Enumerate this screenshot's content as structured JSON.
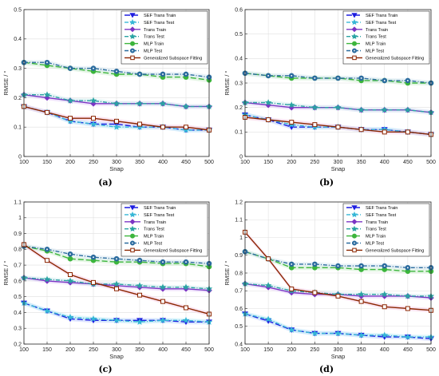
{
  "chart_data": [
    {
      "type": "line",
      "panel_label": "(a)",
      "xlabel": "Snap",
      "ylabel": "RMSE / °",
      "x": [
        100,
        150,
        200,
        250,
        300,
        350,
        400,
        450,
        500
      ],
      "xlim": [
        100,
        500
      ],
      "ylim": [
        0,
        0.5
      ],
      "xticks": [
        "100",
        "150",
        "200",
        "250",
        "300",
        "350",
        "400",
        "450",
        "500"
      ],
      "yticks": [
        "0",
        "0.1",
        "0.2",
        "0.3",
        "0.4",
        "0.5"
      ],
      "grid": true,
      "legend": "top-right",
      "series": [
        {
          "name": "SEF Trans Train",
          "values": [
            0.17,
            0.15,
            0.12,
            0.11,
            0.11,
            0.1,
            0.1,
            0.09,
            0.09
          ]
        },
        {
          "name": "SEF Trans Test",
          "values": [
            0.17,
            0.15,
            0.12,
            0.11,
            0.1,
            0.1,
            0.1,
            0.09,
            0.09
          ]
        },
        {
          "name": "Trans Train",
          "values": [
            0.21,
            0.2,
            0.19,
            0.18,
            0.18,
            0.18,
            0.18,
            0.17,
            0.17
          ]
        },
        {
          "name": "Trans Test",
          "values": [
            0.21,
            0.21,
            0.19,
            0.19,
            0.18,
            0.18,
            0.18,
            0.17,
            0.17
          ]
        },
        {
          "name": "MLP Train",
          "values": [
            0.32,
            0.31,
            0.3,
            0.29,
            0.28,
            0.28,
            0.27,
            0.27,
            0.26
          ]
        },
        {
          "name": "MLP Test",
          "values": [
            0.32,
            0.32,
            0.3,
            0.3,
            0.29,
            0.28,
            0.28,
            0.28,
            0.27
          ]
        },
        {
          "name": "Generalized Subspace Fitting",
          "values": [
            0.17,
            0.15,
            0.13,
            0.13,
            0.12,
            0.11,
            0.1,
            0.1,
            0.09
          ]
        }
      ]
    },
    {
      "type": "line",
      "panel_label": "(b)",
      "xlabel": "Snap",
      "ylabel": "RMSE / °",
      "x": [
        100,
        150,
        200,
        250,
        300,
        350,
        400,
        450,
        500
      ],
      "xlim": [
        100,
        500
      ],
      "ylim": [
        0,
        0.6
      ],
      "xticks": [
        "100",
        "150",
        "200",
        "250",
        "300",
        "350",
        "400",
        "450",
        "500"
      ],
      "yticks": [
        "0",
        "0.1",
        "0.2",
        "0.3",
        "0.4",
        "0.5",
        "0.6"
      ],
      "grid": true,
      "legend": "top-right",
      "series": [
        {
          "name": "SEF Trans Train",
          "values": [
            0.17,
            0.15,
            0.12,
            0.12,
            0.12,
            0.11,
            0.11,
            0.1,
            0.09
          ]
        },
        {
          "name": "SEF Trans Test",
          "values": [
            0.17,
            0.15,
            0.13,
            0.12,
            0.12,
            0.11,
            0.11,
            0.1,
            0.09
          ]
        },
        {
          "name": "Trans Train",
          "values": [
            0.22,
            0.21,
            0.2,
            0.2,
            0.2,
            0.19,
            0.19,
            0.19,
            0.18
          ]
        },
        {
          "name": "Trans Test",
          "values": [
            0.22,
            0.22,
            0.21,
            0.2,
            0.2,
            0.19,
            0.19,
            0.19,
            0.18
          ]
        },
        {
          "name": "MLP Train",
          "values": [
            0.34,
            0.33,
            0.32,
            0.32,
            0.32,
            0.31,
            0.31,
            0.3,
            0.3
          ]
        },
        {
          "name": "MLP Test",
          "values": [
            0.34,
            0.33,
            0.33,
            0.32,
            0.32,
            0.32,
            0.31,
            0.31,
            0.3
          ]
        },
        {
          "name": "Generalized Subspace Fitting",
          "values": [
            0.16,
            0.15,
            0.14,
            0.13,
            0.12,
            0.11,
            0.1,
            0.1,
            0.09
          ]
        }
      ]
    },
    {
      "type": "line",
      "panel_label": "(c)",
      "xlabel": "Snap",
      "ylabel": "RMSE / °",
      "x": [
        100,
        150,
        200,
        250,
        300,
        350,
        400,
        450,
        500
      ],
      "xlim": [
        100,
        500
      ],
      "ylim": [
        0.2,
        1.1
      ],
      "xticks": [
        "100",
        "150",
        "200",
        "250",
        "300",
        "350",
        "400",
        "450",
        "500"
      ],
      "yticks": [
        "0.2",
        "0.3",
        "0.4",
        "0.5",
        "0.6",
        "0.7",
        "0.8",
        "0.9",
        "1",
        "1.1"
      ],
      "grid": true,
      "legend": "top-right",
      "series": [
        {
          "name": "SEF Trans Train",
          "values": [
            0.46,
            0.41,
            0.36,
            0.35,
            0.35,
            0.35,
            0.35,
            0.34,
            0.34
          ]
        },
        {
          "name": "SEF Trans Test",
          "values": [
            0.46,
            0.41,
            0.37,
            0.36,
            0.35,
            0.34,
            0.35,
            0.35,
            0.34
          ]
        },
        {
          "name": "Trans Train",
          "values": [
            0.62,
            0.6,
            0.59,
            0.58,
            0.57,
            0.56,
            0.55,
            0.55,
            0.54
          ]
        },
        {
          "name": "Trans Test",
          "values": [
            0.62,
            0.61,
            0.6,
            0.58,
            0.58,
            0.57,
            0.56,
            0.56,
            0.55
          ]
        },
        {
          "name": "MLP Train",
          "values": [
            0.82,
            0.79,
            0.74,
            0.73,
            0.72,
            0.72,
            0.71,
            0.71,
            0.69
          ]
        },
        {
          "name": "MLP Test",
          "values": [
            0.82,
            0.8,
            0.77,
            0.75,
            0.74,
            0.73,
            0.72,
            0.72,
            0.71
          ]
        },
        {
          "name": "Generalized Subspace Fitting",
          "values": [
            0.83,
            0.73,
            0.64,
            0.59,
            0.55,
            0.51,
            0.47,
            0.43,
            0.39
          ]
        }
      ]
    },
    {
      "type": "line",
      "panel_label": "(d)",
      "xlabel": "Snap",
      "ylabel": "RMSE / °",
      "x": [
        100,
        150,
        200,
        250,
        300,
        350,
        400,
        450,
        500
      ],
      "xlim": [
        100,
        500
      ],
      "ylim": [
        0.4,
        1.2
      ],
      "xticks": [
        "100",
        "150",
        "200",
        "250",
        "300",
        "350",
        "400",
        "450",
        "500"
      ],
      "yticks": [
        "0.4",
        "0.5",
        "0.6",
        "0.7",
        "0.8",
        "0.9",
        "1",
        "1.1",
        "1.2"
      ],
      "grid": true,
      "legend": "top-right",
      "series": [
        {
          "name": "SEF Trans Train",
          "values": [
            0.57,
            0.53,
            0.48,
            0.46,
            0.46,
            0.45,
            0.44,
            0.44,
            0.43
          ]
        },
        {
          "name": "SEF Trans Test",
          "values": [
            0.57,
            0.54,
            0.48,
            0.46,
            0.46,
            0.45,
            0.45,
            0.44,
            0.44
          ]
        },
        {
          "name": "Trans Train",
          "values": [
            0.74,
            0.72,
            0.69,
            0.68,
            0.68,
            0.67,
            0.67,
            0.67,
            0.66
          ]
        },
        {
          "name": "Trans Test",
          "values": [
            0.74,
            0.73,
            0.7,
            0.69,
            0.68,
            0.68,
            0.68,
            0.67,
            0.67
          ]
        },
        {
          "name": "MLP Train",
          "values": [
            0.92,
            0.88,
            0.83,
            0.83,
            0.83,
            0.82,
            0.82,
            0.81,
            0.81
          ]
        },
        {
          "name": "MLP Test",
          "values": [
            0.92,
            0.88,
            0.85,
            0.85,
            0.84,
            0.84,
            0.84,
            0.83,
            0.83
          ]
        },
        {
          "name": "Generalized Subspace Fitting",
          "values": [
            1.03,
            0.88,
            0.71,
            0.69,
            0.67,
            0.64,
            0.61,
            0.6,
            0.59
          ]
        }
      ]
    }
  ],
  "styles": [
    {
      "color": "#1f1fe0",
      "dash": "7,3",
      "marker": "triangle-down",
      "filled": true
    },
    {
      "color": "#36b6d6",
      "dash": "5,2,1,2",
      "marker": "star",
      "filled": true
    },
    {
      "color": "#7b35c4",
      "dash": "",
      "marker": "diamond",
      "filled": true
    },
    {
      "color": "#2aa3a3",
      "dash": "5,2,1,2",
      "marker": "star",
      "filled": true
    },
    {
      "color": "#3cb53c",
      "dash": "7,3",
      "marker": "circle",
      "filled": true
    },
    {
      "color": "#2b6b9e",
      "dash": "5,2,1,2",
      "marker": "circle-dot",
      "filled": true
    },
    {
      "color": "#8b2500",
      "dash": "",
      "marker": "square",
      "filled": false
    }
  ],
  "band_colors": [
    "#c5d0ff",
    "#c9f3f7",
    "#e6cdfa",
    "#d9f1f1",
    "#cfefcf",
    "#dbe9f3",
    "#f6cfe6"
  ]
}
